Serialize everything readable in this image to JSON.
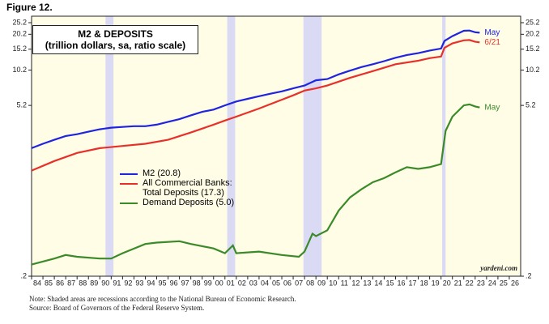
{
  "header": "Figure 12.",
  "chart_data": {
    "type": "line",
    "title": "M2 & DEPOSITS",
    "subtitle": "(trillion dollars, sa, ratio scale)",
    "log_scale": true,
    "xlim": [
      1984,
      2027
    ],
    "ylim": [
      0.2,
      25.2
    ],
    "yticks": [
      {
        "value": 0.2,
        "label": ".2"
      },
      5.2,
      10.2,
      15.2,
      20.2,
      25.2
    ],
    "xticks": [
      {
        "value": 1984,
        "label": "84"
      },
      {
        "value": 1985,
        "label": "85"
      },
      {
        "value": 1986,
        "label": "86"
      },
      {
        "value": 1987,
        "label": "87"
      },
      {
        "value": 1988,
        "label": "88"
      },
      {
        "value": 1989,
        "label": "89"
      },
      {
        "value": 1990,
        "label": "90"
      },
      {
        "value": 1991,
        "label": "91"
      },
      {
        "value": 1992,
        "label": "92"
      },
      {
        "value": 1993,
        "label": "93"
      },
      {
        "value": 1994,
        "label": "94"
      },
      {
        "value": 1995,
        "label": "95"
      },
      {
        "value": 1996,
        "label": "96"
      },
      {
        "value": 1997,
        "label": "97"
      },
      {
        "value": 1998,
        "label": "98"
      },
      {
        "value": 1999,
        "label": "99"
      },
      {
        "value": 2000,
        "label": "00"
      },
      {
        "value": 2001,
        "label": "01"
      },
      {
        "value": 2002,
        "label": "02"
      },
      {
        "value": 2003,
        "label": "03"
      },
      {
        "value": 2004,
        "label": "04"
      },
      {
        "value": 2005,
        "label": "05"
      },
      {
        "value": 2006,
        "label": "06"
      },
      {
        "value": 2007,
        "label": "07"
      },
      {
        "value": 2008,
        "label": "08"
      },
      {
        "value": 2009,
        "label": "09"
      },
      {
        "value": 2010,
        "label": "10"
      },
      {
        "value": 2011,
        "label": "11"
      },
      {
        "value": 2012,
        "label": "12"
      },
      {
        "value": 2013,
        "label": "13"
      },
      {
        "value": 2014,
        "label": "14"
      },
      {
        "value": 2015,
        "label": "15"
      },
      {
        "value": 2016,
        "label": "16"
      },
      {
        "value": 2017,
        "label": "17"
      },
      {
        "value": 2018,
        "label": "18"
      },
      {
        "value": 2019,
        "label": "19"
      },
      {
        "value": 2020,
        "label": "20"
      },
      {
        "value": 2021,
        "label": "21"
      },
      {
        "value": 2022,
        "label": "22"
      },
      {
        "value": 2023,
        "label": "23"
      },
      {
        "value": 2024,
        "label": "24"
      },
      {
        "value": 2025,
        "label": "25"
      },
      {
        "value": 2026,
        "label": "26"
      }
    ],
    "shaded_periods": [
      [
        1990.5,
        1991.2
      ],
      [
        2001.2,
        2001.9
      ],
      [
        2007.9,
        2009.5
      ],
      [
        2020.1,
        2020.4
      ]
    ],
    "series": [
      {
        "name": "M2 (20.8)",
        "color": "#1f24e0",
        "end_label": "May",
        "x": [
          1984,
          1985,
          1986,
          1987,
          1988,
          1989,
          1990,
          1991,
          1992,
          1993,
          1994,
          1995,
          1996,
          1997,
          1998,
          1999,
          2000,
          2001,
          2002,
          2003,
          2004,
          2005,
          2006,
          2007,
          2008,
          2009,
          2010,
          2011,
          2012,
          2013,
          2014,
          2015,
          2016,
          2017,
          2018,
          2019,
          2020.0,
          2020.3,
          2021,
          2022,
          2022.5,
          2023,
          2023.4
        ],
        "values": [
          2.3,
          2.5,
          2.7,
          2.9,
          3.0,
          3.15,
          3.3,
          3.4,
          3.45,
          3.5,
          3.5,
          3.6,
          3.8,
          4.0,
          4.3,
          4.6,
          4.8,
          5.2,
          5.6,
          5.9,
          6.2,
          6.5,
          6.8,
          7.2,
          7.6,
          8.4,
          8.6,
          9.4,
          10.1,
          10.8,
          11.4,
          12.1,
          12.9,
          13.6,
          14.1,
          14.8,
          15.4,
          17.8,
          19.5,
          21.6,
          21.7,
          21.0,
          20.8
        ]
      },
      {
        "name": "All Commercial Banks: Total Deposits (17.3)",
        "color": "#e8302a",
        "end_label": "6/21",
        "x": [
          1984,
          1986,
          1988,
          1990,
          1992,
          1994,
          1996,
          1998,
          2000,
          2001,
          2002,
          2004,
          2006,
          2007,
          2008,
          2009,
          2010,
          2012,
          2014,
          2016,
          2018,
          2019,
          2020.0,
          2020.3,
          2021,
          2022,
          2022.5,
          2023,
          2023.4
        ],
        "values": [
          1.5,
          1.8,
          2.1,
          2.3,
          2.4,
          2.5,
          2.7,
          3.1,
          3.6,
          3.9,
          4.2,
          4.9,
          5.8,
          6.3,
          6.9,
          7.2,
          7.6,
          8.8,
          10.0,
          11.4,
          12.2,
          12.8,
          13.2,
          15.6,
          17.0,
          18.0,
          18.1,
          17.5,
          17.3
        ]
      },
      {
        "name": "Demand Deposits (5.0)",
        "color": "#3a8a2a",
        "end_label": "May",
        "x": [
          1984,
          1986,
          1987,
          1988,
          1990,
          1991,
          1992,
          1994,
          1995,
          1997,
          1998,
          2000,
          2001,
          2001.7,
          2002,
          2004,
          2006,
          2007.5,
          2008,
          2008.7,
          2009,
          2010,
          2011,
          2012,
          2013,
          2014,
          2015,
          2016,
          2017,
          2018,
          2019,
          2020.0,
          2020.4,
          2021,
          2022,
          2022.5,
          2023,
          2023.4
        ],
        "values": [
          0.25,
          0.28,
          0.3,
          0.29,
          0.28,
          0.28,
          0.31,
          0.37,
          0.38,
          0.39,
          0.37,
          0.34,
          0.31,
          0.36,
          0.31,
          0.32,
          0.3,
          0.29,
          0.32,
          0.45,
          0.43,
          0.48,
          0.7,
          0.9,
          1.05,
          1.2,
          1.3,
          1.45,
          1.6,
          1.55,
          1.6,
          1.7,
          3.2,
          4.2,
          5.2,
          5.3,
          5.1,
          5.0
        ]
      }
    ],
    "source_mark": "yardeni.com"
  },
  "notes": [
    "Note: Shaded areas are recessions according to the National Bureau of Economic Research.",
    "Source: Board of Governors of the Federal Reserve System."
  ]
}
